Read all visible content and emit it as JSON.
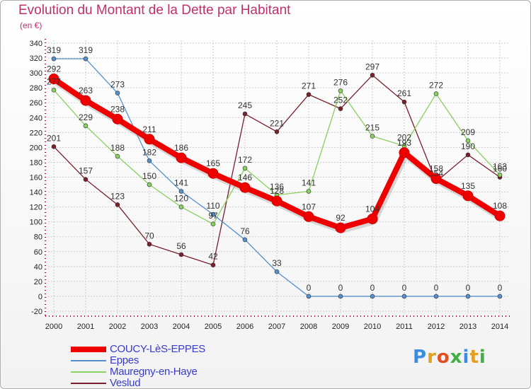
{
  "header": {
    "title": "Evolution du Montant de la Dette par Habitant",
    "unit": "(en €)"
  },
  "logo": {
    "letters": [
      "P",
      "r",
      "o",
      "x",
      "i",
      "t",
      "i"
    ],
    "colors": [
      "#3a8de0",
      "#e0a020",
      "#e05020",
      "#40b040",
      "#3a8de0",
      "#e0a020",
      "#40b040"
    ]
  },
  "chart_data": {
    "type": "line",
    "title": "Evolution du Montant de la Dette par Habitant",
    "subtitle": "(en €)",
    "x": [
      "2000",
      "2001",
      "2002",
      "2003",
      "2004",
      "2005",
      "2006",
      "2007",
      "2008",
      "2009",
      "2010",
      "2011",
      "2012",
      "2013",
      "2014"
    ],
    "ylim": [
      -20,
      340
    ],
    "yticks": [
      -20,
      0,
      20,
      40,
      60,
      80,
      100,
      120,
      140,
      160,
      180,
      200,
      220,
      240,
      260,
      280,
      300,
      320,
      340
    ],
    "grid": true,
    "legend": "bottom-left",
    "series": [
      {
        "name": "COUCY-LèS-EPPES",
        "color": "#ee0000",
        "values": [
          292,
          263,
          238,
          211,
          186,
          165,
          146,
          128,
          107,
          92,
          104,
          193,
          158,
          135,
          108
        ]
      },
      {
        "name": "Eppes",
        "color": "#5590cc",
        "values": [
          319,
          319,
          273,
          182,
          141,
          110,
          76,
          33,
          0,
          0,
          0,
          0,
          0,
          0,
          0
        ]
      },
      {
        "name": "Mauregny-en-Haye",
        "color": "#88d060",
        "values": [
          277,
          229,
          188,
          150,
          120,
          97,
          172,
          136,
          141,
          276,
          215,
          202,
          272,
          209,
          163
        ]
      },
      {
        "name": "Veslud",
        "color": "#7a1f2b",
        "values": [
          201,
          157,
          123,
          70,
          56,
          42,
          245,
          221,
          271,
          252,
          297,
          261,
          154,
          190,
          160
        ]
      }
    ]
  }
}
